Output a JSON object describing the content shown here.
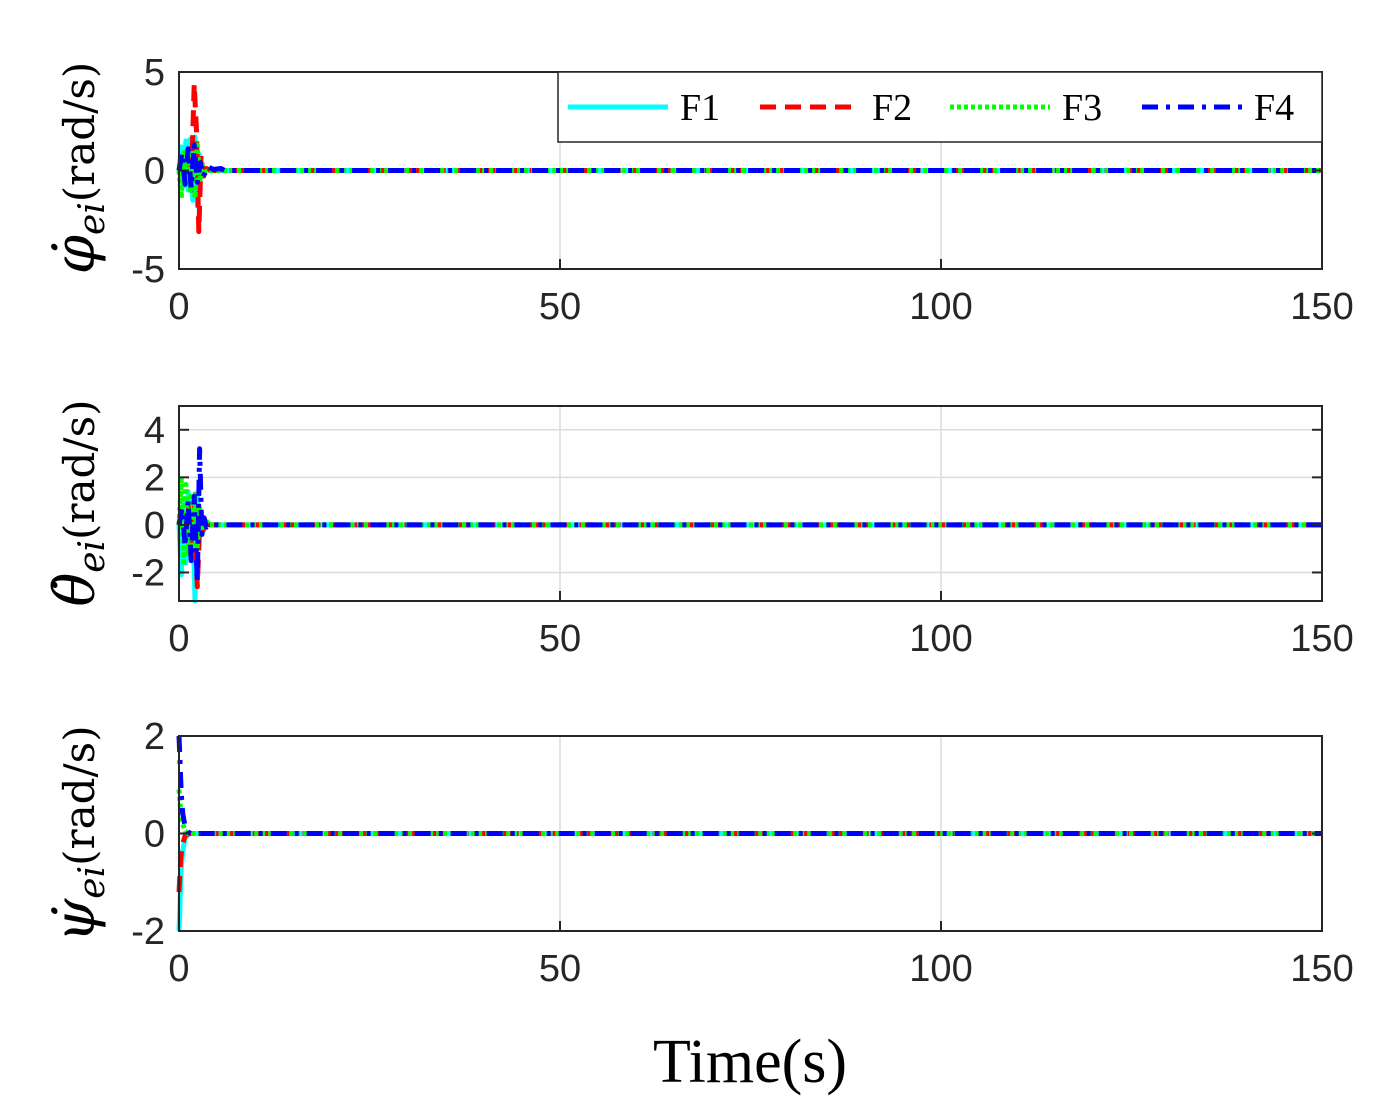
{
  "chart_data": [
    {
      "type": "line",
      "ylabel": "φ̇ei(rad/s)",
      "ylabel_sym": "φ̇",
      "ylabel_sub": "ei",
      "ylabel_unit": "(rad/s)",
      "xlim": [
        0,
        150
      ],
      "ylim": [
        -5,
        5
      ],
      "xticks": [
        0,
        50,
        100,
        150
      ],
      "yticks": [
        -5,
        0,
        5
      ],
      "grid": true,
      "legend": {
        "placement": "top-right",
        "orientation": "horizontal",
        "entries": [
          "F1",
          "F2",
          "F3",
          "F4"
        ]
      },
      "series": [
        {
          "name": "F1",
          "x": [
            0,
            0.3,
            0.6,
            0.9,
            1.2,
            1.5,
            1.8,
            2.1,
            2.4,
            2.7,
            3.0,
            3.5,
            4,
            5,
            150
          ],
          "y": [
            0,
            1.2,
            -0.8,
            1.5,
            -1.0,
            1.6,
            -1.5,
            1.7,
            -1.8,
            0.8,
            -0.2,
            0.1,
            0,
            0,
            0
          ]
        },
        {
          "name": "F2",
          "x": [
            0,
            0.4,
            0.8,
            1.2,
            1.6,
            2.0,
            2.3,
            2.6,
            2.9,
            3.2,
            3.6,
            4.2,
            5,
            150
          ],
          "y": [
            0,
            0.6,
            -0.5,
            1.2,
            -1.0,
            4.4,
            2.0,
            -3.1,
            0.8,
            -0.4,
            0.1,
            0,
            0,
            0
          ]
        },
        {
          "name": "F3",
          "x": [
            0,
            0.3,
            0.6,
            0.9,
            1.2,
            1.5,
            1.8,
            2.1,
            2.4,
            2.7,
            3.0,
            3.5,
            4,
            5,
            150
          ],
          "y": [
            0,
            -1.4,
            0.9,
            -0.6,
            1.1,
            -1.0,
            0.8,
            -1.4,
            1.3,
            -0.6,
            0.3,
            -0.1,
            0,
            0,
            0
          ]
        },
        {
          "name": "F4",
          "x": [
            0,
            0.4,
            0.8,
            1.2,
            1.6,
            2.0,
            2.4,
            2.8,
            3.2,
            3.8,
            4.5,
            5.5,
            6,
            150
          ],
          "y": [
            0,
            0.9,
            -0.7,
            1.1,
            -0.9,
            1.3,
            -0.6,
            0.4,
            -0.3,
            0.2,
            0.05,
            0.1,
            0,
            0
          ]
        }
      ]
    },
    {
      "type": "line",
      "ylabel": "θ̇ei(rad/s)",
      "ylabel_sym": "θ̇",
      "ylabel_sub": "ei",
      "ylabel_unit": "(rad/s)",
      "xlim": [
        0,
        150
      ],
      "ylim": [
        -3.2,
        5
      ],
      "xticks": [
        0,
        50,
        100,
        150
      ],
      "yticks": [
        -2,
        0,
        2,
        4
      ],
      "grid": true,
      "series": [
        {
          "name": "F1",
          "x": [
            0,
            0.3,
            0.6,
            0.9,
            1.2,
            1.5,
            1.8,
            2.1,
            2.4,
            2.7,
            3.0,
            3.5,
            4,
            150
          ],
          "y": [
            0,
            -2.1,
            1.0,
            -1.6,
            1.4,
            -1.2,
            0.8,
            -3.2,
            1.2,
            -0.5,
            0.2,
            0,
            0,
            0
          ]
        },
        {
          "name": "F2",
          "x": [
            0,
            0.4,
            0.8,
            1.2,
            1.6,
            2.0,
            2.4,
            2.8,
            3.2,
            3.6,
            4,
            150
          ],
          "y": [
            0,
            0.5,
            -0.6,
            0.9,
            -0.7,
            1.0,
            -2.6,
            0.7,
            -0.3,
            0.1,
            0,
            0
          ]
        },
        {
          "name": "F3",
          "x": [
            0,
            0.3,
            0.6,
            0.9,
            1.2,
            1.5,
            1.8,
            2.1,
            2.4,
            2.7,
            3.0,
            3.4,
            3.8,
            150
          ],
          "y": [
            0,
            1.9,
            -1.7,
            1.7,
            -1.2,
            1.2,
            -1.0,
            1.3,
            -0.9,
            0.7,
            -0.4,
            0.3,
            0,
            0
          ]
        },
        {
          "name": "F4",
          "x": [
            0,
            0.4,
            0.8,
            1.2,
            1.6,
            2.0,
            2.4,
            2.7,
            3.0,
            3.3,
            3.6,
            4,
            150
          ],
          "y": [
            0,
            0.7,
            -0.9,
            1.0,
            -1.5,
            1.2,
            -2.4,
            3.2,
            -0.4,
            0.3,
            -0.1,
            0,
            0
          ]
        }
      ]
    },
    {
      "type": "line",
      "ylabel": "ψ̇ei(rad/s)",
      "ylabel_sym": "ψ̇",
      "ylabel_sub": "ei",
      "ylabel_unit": "(rad/s)",
      "xlim": [
        0,
        150
      ],
      "ylim": [
        -2,
        2
      ],
      "xticks": [
        0,
        50,
        100,
        150
      ],
      "yticks": [
        -2,
        0,
        2
      ],
      "grid": true,
      "series": [
        {
          "name": "F1",
          "x": [
            0,
            0.1,
            0.2,
            0.3,
            0.5,
            0.8,
            1.2,
            1.6,
            2,
            150
          ],
          "y": [
            -2,
            -1.6,
            -1.1,
            -0.7,
            -0.35,
            -0.1,
            -0.02,
            0,
            0,
            0
          ]
        },
        {
          "name": "F2",
          "x": [
            0,
            0.1,
            0.2,
            0.3,
            0.5,
            0.8,
            1.2,
            1.6,
            2,
            150
          ],
          "y": [
            -1.2,
            -0.9,
            -0.6,
            -0.4,
            -0.2,
            -0.05,
            0,
            0,
            0,
            0
          ]
        },
        {
          "name": "F3",
          "x": [
            0,
            0.1,
            0.2,
            0.3,
            0.5,
            0.8,
            1.2,
            1.6,
            2,
            150
          ],
          "y": [
            0.9,
            0.7,
            0.5,
            0.35,
            0.2,
            0.05,
            0,
            0,
            0,
            0
          ]
        },
        {
          "name": "F4",
          "x": [
            0,
            0.1,
            0.2,
            0.3,
            0.5,
            0.8,
            1.2,
            1.6,
            2,
            150
          ],
          "y": [
            2,
            1.6,
            1.2,
            0.8,
            0.4,
            0.15,
            0.03,
            0,
            0,
            0
          ]
        }
      ]
    }
  ],
  "xlabel": "Time(s)",
  "series_colors": {
    "F1": "#00ffff",
    "F2": "#ff0000",
    "F3": "#00ff00",
    "F4": "#0000ff"
  },
  "series_styles": {
    "F1": "solid",
    "F2": "dashed",
    "F3": "dotted",
    "F4": "dash-dot"
  }
}
